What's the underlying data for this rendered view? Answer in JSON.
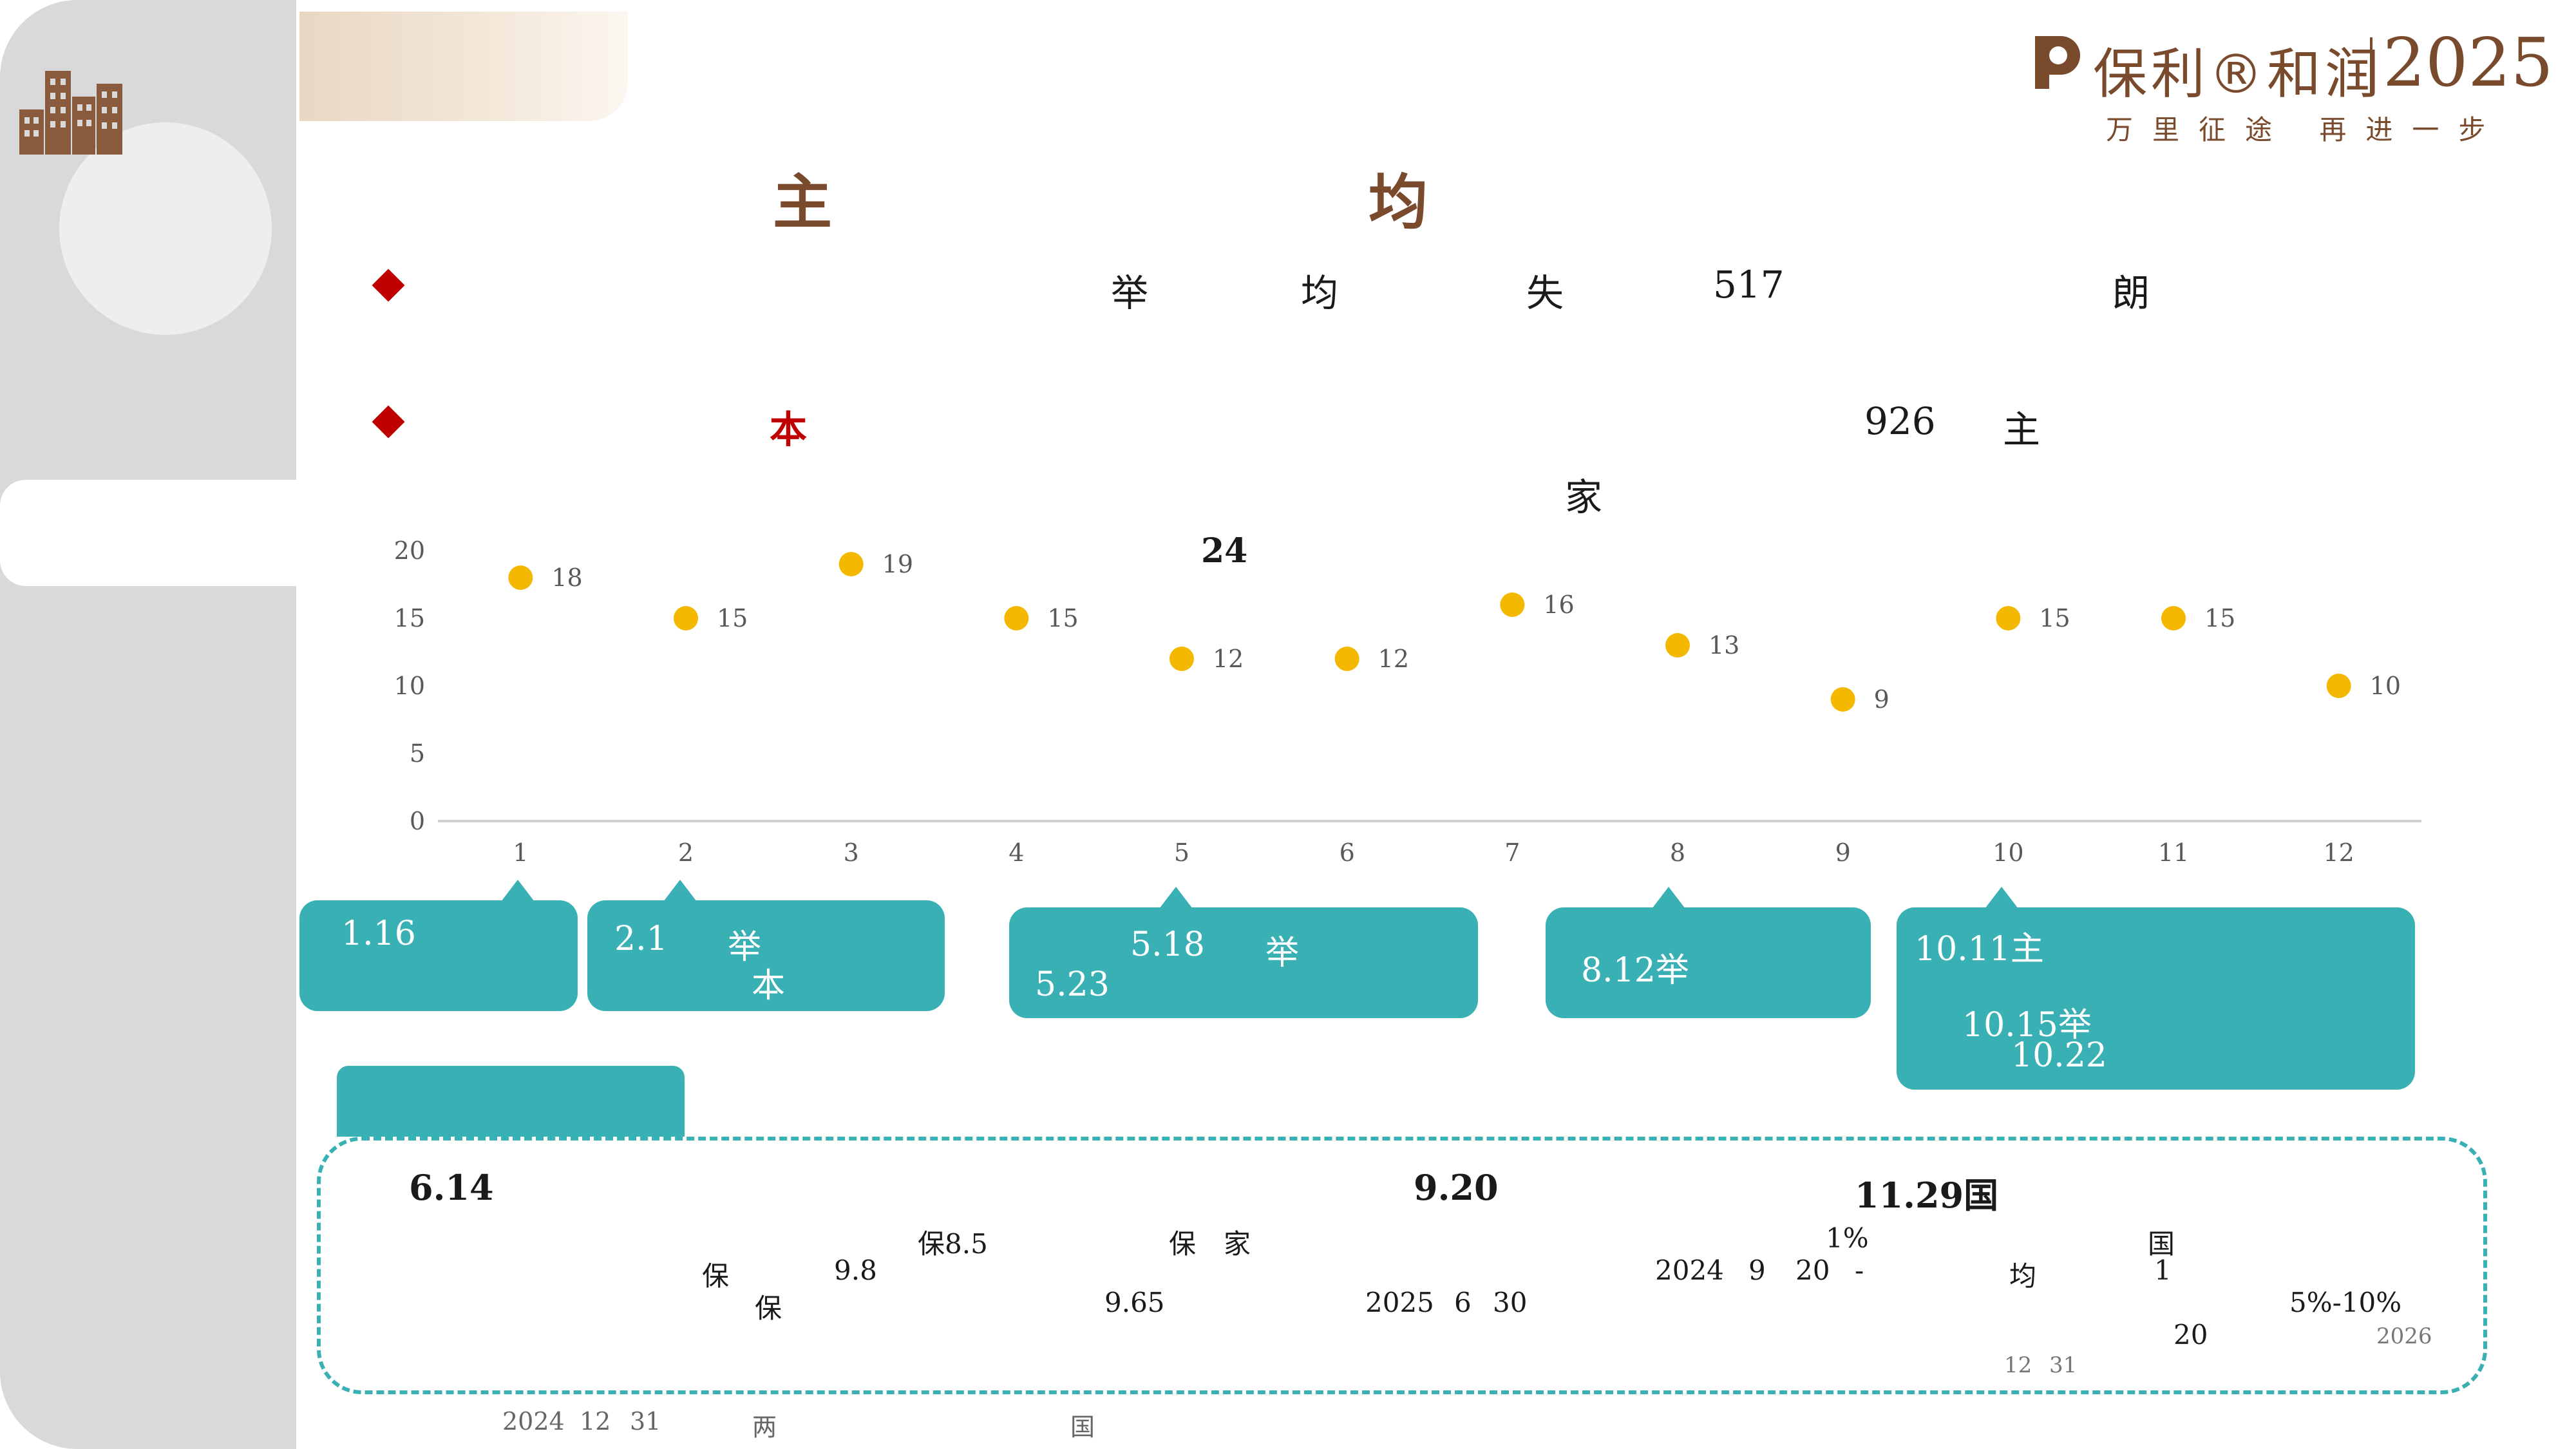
{
  "brand": {
    "name": "保利®和润",
    "year": "2025",
    "slogan": "万里征途 再进一步"
  },
  "headings": {
    "title_1": "主",
    "title_2": "均"
  },
  "bullet_1": {
    "t1": "举",
    "t2": "均",
    "t3": "失",
    "t4": "517",
    "t5": "朗"
  },
  "bullet_2": {
    "red": "本",
    "t1": "926",
    "t2": "主",
    "t3": "家"
  },
  "chart_annotation": "24",
  "chart_data": {
    "type": "scatter",
    "x": [
      1,
      2,
      3,
      4,
      5,
      6,
      7,
      8,
      9,
      10,
      11,
      12
    ],
    "y": [
      18,
      15,
      19,
      15,
      12,
      12,
      16,
      13,
      9,
      15,
      15,
      10
    ],
    "xlim": [
      0.5,
      12.5
    ],
    "ylim": [
      0,
      20
    ],
    "yticks": [
      0,
      5,
      10,
      15,
      20
    ],
    "data_labels": true,
    "marker_color": "#f5b800",
    "title": "",
    "xlabel": "",
    "ylabel": ""
  },
  "callouts": {
    "c1": {
      "l1": "1.16"
    },
    "c2": {
      "l1": "2.1",
      "l2": "举",
      "l3": "本"
    },
    "c3": {
      "l1": "5.18",
      "l2": "举",
      "l3": "5.23"
    },
    "c4": {
      "l1": "8.12举"
    },
    "c5": {
      "l1": "10.11主",
      "l2": "10.15举",
      "l3": "10.22"
    }
  },
  "policy_box": {
    "col1": {
      "date": "6.14",
      "a": "保8.5",
      "b": "保",
      "c": "9.8",
      "d": "保"
    },
    "col2": {
      "a": "保",
      "b": "家",
      "c": "9.65"
    },
    "col3": {
      "date": "9.20",
      "a": "1%",
      "b": "2024",
      "c": "9",
      "d": "20",
      "e": "-",
      "f": "2025",
      "g": "6",
      "h": "30"
    },
    "col4": {
      "date": "11.29国",
      "a": "国",
      "b": "均",
      "c": "1",
      "d": "5%-10%",
      "e": "20",
      "f": "2026",
      "g": "12",
      "h": "31"
    }
  },
  "footnote": {
    "a": "2024",
    "b": "12",
    "c": "31",
    "d": "两",
    "e": "国"
  },
  "colors": {
    "accent": "#38b0b4",
    "brand": "#7a4a2c",
    "bullet": "#c00000",
    "marker": "#f5b800"
  }
}
